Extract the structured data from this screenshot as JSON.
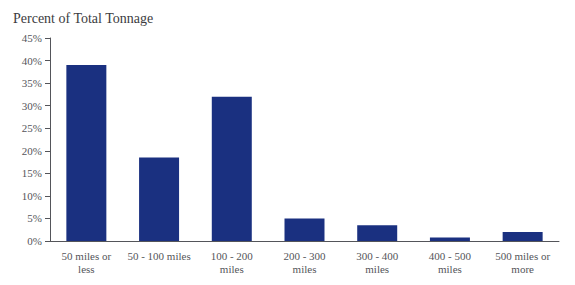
{
  "chart_data": {
    "type": "bar",
    "title": "Percent of Total Tonnage",
    "categories": [
      "50 miles or\nless",
      "50 - 100 miles",
      "100 - 200\nmiles",
      "200 - 300\nmiles",
      "300 - 400\nmiles",
      "400 - 500\nmiles",
      "500 miles or\nmore"
    ],
    "values": [
      39,
      18.5,
      32,
      5,
      3.5,
      0.75,
      2
    ],
    "color": "#1a3080",
    "ylim": [
      0,
      45
    ],
    "yticks": [
      {
        "value": 0,
        "label": "0%"
      },
      {
        "value": 5,
        "label": "5%"
      },
      {
        "value": 10,
        "label": "10%"
      },
      {
        "value": 15,
        "label": "15%"
      },
      {
        "value": 20,
        "label": "20%"
      },
      {
        "value": 25,
        "label": "25%"
      },
      {
        "value": 30,
        "label": "30%"
      },
      {
        "value": 35,
        "label": "35%"
      },
      {
        "value": 40,
        "label": "40%"
      },
      {
        "value": 45,
        "label": "45%"
      }
    ],
    "grid": false
  }
}
